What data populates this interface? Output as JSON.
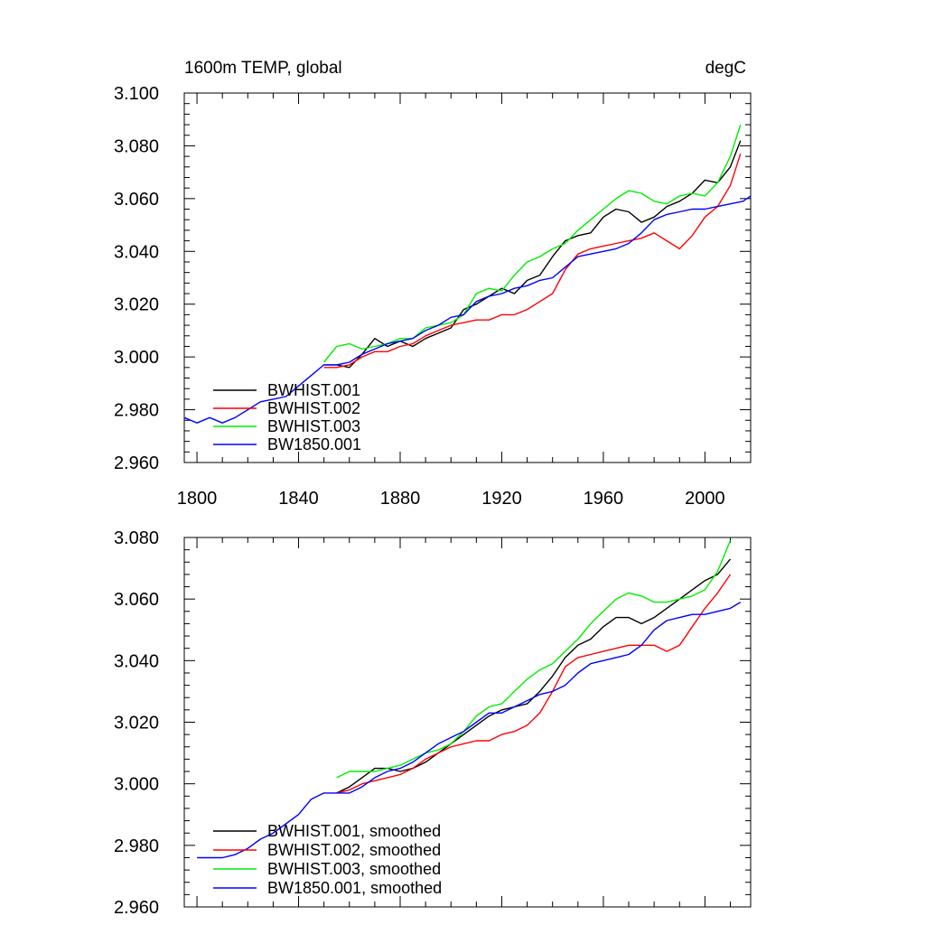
{
  "chart_data": [
    {
      "type": "line",
      "title": "1600m TEMP, global",
      "units": "degC",
      "xlabel": "",
      "ylabel": "",
      "xlim": [
        1795,
        2018
      ],
      "ylim": [
        2.96,
        3.1
      ],
      "x_ticks": [
        1800,
        1840,
        1880,
        1920,
        1960,
        2000
      ],
      "x_tick_labels": [
        "1800",
        "1840",
        "1880",
        "1920",
        "1960",
        "2000"
      ],
      "y_ticks": [
        2.96,
        2.98,
        3.0,
        3.02,
        3.04,
        3.06,
        3.08,
        3.1
      ],
      "y_tick_labels": [
        "2.960",
        "2.980",
        "3.000",
        "3.020",
        "3.040",
        "3.060",
        "3.080",
        "3.100"
      ],
      "grid": false,
      "legend_position": "bottom-left",
      "series": [
        {
          "name": "BWHIST.001",
          "color": "#000000",
          "x": [
            1850,
            1855,
            1860,
            1865,
            1870,
            1875,
            1880,
            1885,
            1890,
            1895,
            1900,
            1905,
            1910,
            1915,
            1920,
            1925,
            1930,
            1935,
            1940,
            1945,
            1950,
            1955,
            1960,
            1965,
            1970,
            1975,
            1980,
            1985,
            1990,
            1995,
            2000,
            2005,
            2010,
            2014
          ],
          "y": [
            2.997,
            2.997,
            2.996,
            3.001,
            3.007,
            3.004,
            3.006,
            3.004,
            3.007,
            3.009,
            3.011,
            3.018,
            3.02,
            3.023,
            3.026,
            3.024,
            3.029,
            3.031,
            3.038,
            3.044,
            3.046,
            3.047,
            3.053,
            3.056,
            3.055,
            3.051,
            3.053,
            3.057,
            3.059,
            3.062,
            3.067,
            3.066,
            3.072,
            3.082
          ]
        },
        {
          "name": "BWHIST.002",
          "color": "#ff0000",
          "x": [
            1850,
            1855,
            1860,
            1865,
            1870,
            1875,
            1880,
            1885,
            1890,
            1895,
            1900,
            1905,
            1910,
            1915,
            1920,
            1925,
            1930,
            1935,
            1940,
            1945,
            1950,
            1955,
            1960,
            1965,
            1970,
            1975,
            1980,
            1985,
            1990,
            1995,
            2000,
            2005,
            2010,
            2014
          ],
          "y": [
            2.996,
            2.996,
            2.997,
            3.0,
            3.002,
            3.002,
            3.004,
            3.005,
            3.008,
            3.01,
            3.012,
            3.013,
            3.014,
            3.014,
            3.016,
            3.016,
            3.018,
            3.021,
            3.024,
            3.033,
            3.039,
            3.041,
            3.042,
            3.043,
            3.044,
            3.045,
            3.047,
            3.044,
            3.041,
            3.046,
            3.053,
            3.057,
            3.065,
            3.077
          ]
        },
        {
          "name": "BWHIST.003",
          "color": "#00ee00",
          "x": [
            1850,
            1855,
            1860,
            1865,
            1870,
            1875,
            1880,
            1885,
            1890,
            1895,
            1900,
            1905,
            1910,
            1915,
            1920,
            1925,
            1930,
            1935,
            1940,
            1945,
            1950,
            1955,
            1960,
            1965,
            1970,
            1975,
            1980,
            1985,
            1990,
            1995,
            2000,
            2005,
            2010,
            2014
          ],
          "y": [
            2.998,
            3.004,
            3.005,
            3.003,
            3.004,
            3.005,
            3.007,
            3.007,
            3.011,
            3.012,
            3.013,
            3.016,
            3.024,
            3.026,
            3.025,
            3.031,
            3.036,
            3.038,
            3.041,
            3.043,
            3.048,
            3.052,
            3.056,
            3.06,
            3.063,
            3.062,
            3.059,
            3.058,
            3.061,
            3.062,
            3.061,
            3.066,
            3.076,
            3.088
          ]
        },
        {
          "name": "BW1850.001",
          "color": "#0000ff",
          "x": [
            1795,
            1800,
            1805,
            1810,
            1815,
            1820,
            1825,
            1830,
            1835,
            1840,
            1845,
            1850,
            1855,
            1860,
            1865,
            1870,
            1875,
            1880,
            1885,
            1890,
            1895,
            1900,
            1905,
            1910,
            1915,
            1920,
            1925,
            1930,
            1935,
            1940,
            1945,
            1950,
            1955,
            1960,
            1965,
            1970,
            1975,
            1980,
            1985,
            1990,
            1995,
            2000,
            2005,
            2010,
            2015,
            2018
          ],
          "y": [
            2.977,
            2.975,
            2.977,
            2.975,
            2.977,
            2.98,
            2.983,
            2.984,
            2.985,
            2.989,
            2.993,
            2.997,
            2.997,
            2.998,
            3.001,
            3.003,
            3.005,
            3.006,
            3.007,
            3.01,
            3.012,
            3.015,
            3.016,
            3.021,
            3.023,
            3.024,
            3.026,
            3.027,
            3.029,
            3.03,
            3.034,
            3.038,
            3.039,
            3.04,
            3.041,
            3.043,
            3.047,
            3.052,
            3.054,
            3.055,
            3.056,
            3.056,
            3.057,
            3.058,
            3.059,
            3.061
          ]
        }
      ]
    },
    {
      "type": "line",
      "title": "",
      "xlabel": "",
      "ylabel": "",
      "xlim": [
        1795,
        2018
      ],
      "ylim": [
        2.96,
        3.08
      ],
      "x_ticks": [
        1800,
        1840,
        1880,
        1920,
        1960,
        2000
      ],
      "x_tick_labels": [],
      "y_ticks": [
        2.96,
        2.98,
        3.0,
        3.02,
        3.04,
        3.06,
        3.08
      ],
      "y_tick_labels": [
        "2.960",
        "2.980",
        "3.000",
        "3.020",
        "3.040",
        "3.060",
        "3.080"
      ],
      "grid": false,
      "legend_position": "bottom-left",
      "series": [
        {
          "name": "BWHIST.001, smoothed",
          "color": "#000000",
          "x": [
            1855,
            1860,
            1865,
            1870,
            1875,
            1880,
            1885,
            1890,
            1895,
            1900,
            1905,
            1910,
            1915,
            1920,
            1925,
            1930,
            1935,
            1940,
            1945,
            1950,
            1955,
            1960,
            1965,
            1970,
            1975,
            1980,
            1985,
            1990,
            1995,
            2000,
            2005,
            2010
          ],
          "y": [
            2.997,
            2.999,
            3.002,
            3.005,
            3.005,
            3.004,
            3.005,
            3.007,
            3.01,
            3.013,
            3.016,
            3.019,
            3.022,
            3.024,
            3.025,
            3.026,
            3.03,
            3.035,
            3.041,
            3.045,
            3.047,
            3.051,
            3.054,
            3.054,
            3.052,
            3.054,
            3.057,
            3.06,
            3.063,
            3.066,
            3.068,
            3.073
          ]
        },
        {
          "name": "BWHIST.002, smoothed",
          "color": "#ff0000",
          "x": [
            1855,
            1860,
            1865,
            1870,
            1875,
            1880,
            1885,
            1890,
            1895,
            1900,
            1905,
            1910,
            1915,
            1920,
            1925,
            1930,
            1935,
            1940,
            1945,
            1950,
            1955,
            1960,
            1965,
            1970,
            1975,
            1980,
            1985,
            1990,
            1995,
            2000,
            2005,
            2010
          ],
          "y": [
            2.997,
            2.998,
            3.0,
            3.001,
            3.002,
            3.003,
            3.005,
            3.008,
            3.01,
            3.012,
            3.013,
            3.014,
            3.014,
            3.016,
            3.017,
            3.019,
            3.023,
            3.03,
            3.038,
            3.041,
            3.042,
            3.043,
            3.044,
            3.045,
            3.045,
            3.045,
            3.043,
            3.045,
            3.051,
            3.057,
            3.062,
            3.068
          ]
        },
        {
          "name": "BWHIST.003, smoothed",
          "color": "#00ee00",
          "x": [
            1855,
            1860,
            1865,
            1870,
            1875,
            1880,
            1885,
            1890,
            1895,
            1900,
            1905,
            1910,
            1915,
            1920,
            1925,
            1930,
            1935,
            1940,
            1945,
            1950,
            1955,
            1960,
            1965,
            1970,
            1975,
            1980,
            1985,
            1990,
            1995,
            2000,
            2005,
            2010
          ],
          "y": [
            3.002,
            3.004,
            3.004,
            3.004,
            3.005,
            3.006,
            3.008,
            3.01,
            3.011,
            3.013,
            3.017,
            3.022,
            3.025,
            3.026,
            3.03,
            3.034,
            3.037,
            3.039,
            3.043,
            3.047,
            3.052,
            3.056,
            3.06,
            3.062,
            3.061,
            3.059,
            3.059,
            3.06,
            3.061,
            3.063,
            3.069,
            3.079
          ]
        },
        {
          "name": "BW1850.001, smoothed",
          "color": "#0000ff",
          "x": [
            1800,
            1805,
            1810,
            1815,
            1820,
            1825,
            1830,
            1835,
            1840,
            1845,
            1850,
            1855,
            1860,
            1865,
            1870,
            1875,
            1880,
            1885,
            1890,
            1895,
            1900,
            1905,
            1910,
            1915,
            1920,
            1925,
            1930,
            1935,
            1940,
            1945,
            1950,
            1955,
            1960,
            1965,
            1970,
            1975,
            1980,
            1985,
            1990,
            1995,
            2000,
            2005,
            2010,
            2014
          ],
          "y": [
            2.976,
            2.976,
            2.976,
            2.977,
            2.979,
            2.982,
            2.984,
            2.987,
            2.99,
            2.995,
            2.997,
            2.997,
            2.997,
            2.999,
            3.002,
            3.004,
            3.005,
            3.007,
            3.01,
            3.013,
            3.015,
            3.017,
            3.02,
            3.023,
            3.023,
            3.025,
            3.027,
            3.029,
            3.03,
            3.032,
            3.036,
            3.039,
            3.04,
            3.041,
            3.042,
            3.045,
            3.05,
            3.053,
            3.054,
            3.055,
            3.055,
            3.056,
            3.057,
            3.059
          ]
        }
      ]
    }
  ]
}
